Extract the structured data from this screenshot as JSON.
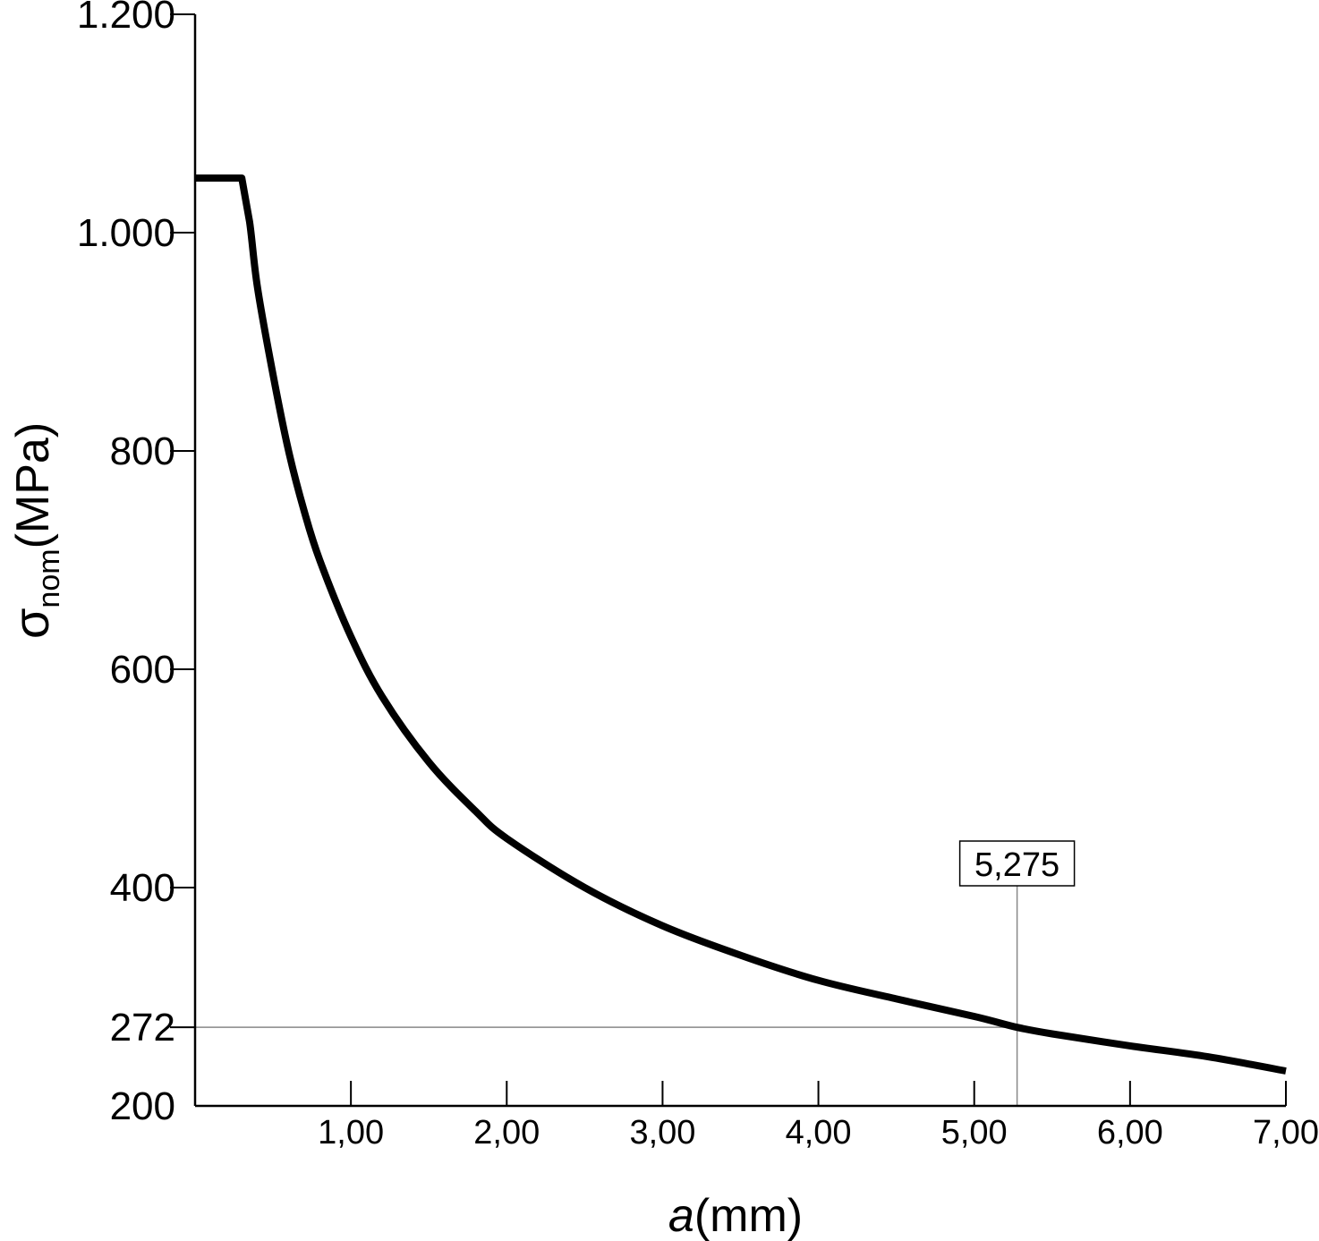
{
  "chart_data": {
    "type": "line",
    "xlabel": {
      "var": "a",
      "unit": "(mm)"
    },
    "ylabel": {
      "var": "σ",
      "sub": "nom",
      "unit": "(MPa)"
    },
    "xlim": [
      0,
      7.0
    ],
    "ylim": [
      200,
      1200
    ],
    "x_ticks": [
      {
        "value": 1,
        "label": "1,00"
      },
      {
        "value": 2,
        "label": "2,00"
      },
      {
        "value": 3,
        "label": "3,00"
      },
      {
        "value": 4,
        "label": "4,00"
      },
      {
        "value": 5,
        "label": "5,00"
      },
      {
        "value": 6,
        "label": "6,00"
      },
      {
        "value": 7,
        "label": "7,00"
      }
    ],
    "y_ticks": [
      {
        "value": 200,
        "label": "200"
      },
      {
        "value": 272,
        "label": "272"
      },
      {
        "value": 400,
        "label": "400"
      },
      {
        "value": 600,
        "label": "600"
      },
      {
        "value": 800,
        "label": "800"
      },
      {
        "value": 1000,
        "label": "1.000"
      },
      {
        "value": 1200,
        "label": "1.200"
      }
    ],
    "grid": false,
    "series": [
      {
        "color": "#000000",
        "x": [
          0,
          0.3,
          0.35,
          0.4,
          0.5,
          0.6,
          0.7,
          0.8,
          1.0,
          1.2,
          1.5,
          1.8,
          2.0,
          2.5,
          3.0,
          3.5,
          4.0,
          4.5,
          5.0,
          5.275,
          5.5,
          6.0,
          6.5,
          7.0
        ],
        "y": [
          1050,
          1050,
          1010,
          950,
          870,
          800,
          745,
          700,
          630,
          575,
          515,
          470,
          445,
          400,
          365,
          338,
          315,
          298,
          282,
          272,
          266,
          255,
          245,
          232
        ]
      }
    ],
    "annotations": [
      {
        "type": "marker",
        "x": 5.275,
        "y": 272,
        "label": "5,275",
        "color": "#888888"
      }
    ]
  }
}
